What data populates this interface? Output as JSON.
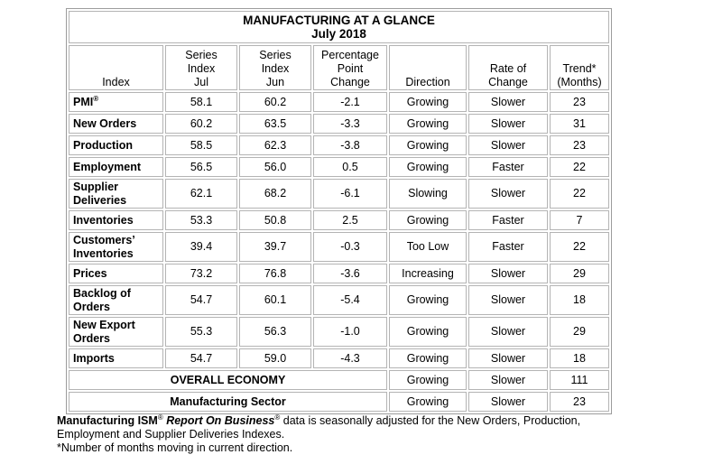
{
  "title": {
    "line1": "MANUFACTURING AT A GLANCE",
    "line2": "July 2018"
  },
  "headers": [
    [
      "Index"
    ],
    [
      "Series",
      "Index",
      "Jul"
    ],
    [
      "Series",
      "Index",
      "Jun"
    ],
    [
      "Percentage",
      "Point",
      "Change"
    ],
    [
      "Direction"
    ],
    [
      "Rate of",
      "Change"
    ],
    [
      "Trend*",
      "(Months)"
    ]
  ],
  "rows": [
    {
      "name": [
        "PMI"
      ],
      "sup": "®",
      "jul": "58.1",
      "jun": "60.2",
      "change": "-2.1",
      "direction": "Growing",
      "rate": "Slower",
      "trend": "23"
    },
    {
      "name": [
        "New Orders"
      ],
      "sup": "",
      "jul": "60.2",
      "jun": "63.5",
      "change": "-3.3",
      "direction": "Growing",
      "rate": "Slower",
      "trend": "31"
    },
    {
      "name": [
        "Production"
      ],
      "sup": "",
      "jul": "58.5",
      "jun": "62.3",
      "change": "-3.8",
      "direction": "Growing",
      "rate": "Slower",
      "trend": "23"
    },
    {
      "name": [
        "Employment"
      ],
      "sup": "",
      "jul": "56.5",
      "jun": "56.0",
      "change": "0.5",
      "direction": "Growing",
      "rate": "Faster",
      "trend": "22"
    },
    {
      "name": [
        "Supplier",
        "Deliveries"
      ],
      "sup": "",
      "jul": "62.1",
      "jun": "68.2",
      "change": "-6.1",
      "direction": "Slowing",
      "rate": "Slower",
      "trend": "22"
    },
    {
      "name": [
        "Inventories"
      ],
      "sup": "",
      "jul": "53.3",
      "jun": "50.8",
      "change": "2.5",
      "direction": "Growing",
      "rate": "Faster",
      "trend": "7"
    },
    {
      "name": [
        "Customers’",
        "Inventories"
      ],
      "sup": "",
      "jul": "39.4",
      "jun": "39.7",
      "change": "-0.3",
      "direction": "Too Low",
      "rate": "Faster",
      "trend": "22"
    },
    {
      "name": [
        "Prices"
      ],
      "sup": "",
      "jul": "73.2",
      "jun": "76.8",
      "change": "-3.6",
      "direction": "Increasing",
      "rate": "Slower",
      "trend": "29"
    },
    {
      "name": [
        "Backlog of",
        "Orders"
      ],
      "sup": "",
      "jul": "54.7",
      "jun": "60.1",
      "change": "-5.4",
      "direction": "Growing",
      "rate": "Slower",
      "trend": "18"
    },
    {
      "name": [
        "New Export",
        "Orders"
      ],
      "sup": "",
      "jul": "55.3",
      "jun": "56.3",
      "change": "-1.0",
      "direction": "Growing",
      "rate": "Slower",
      "trend": "29"
    },
    {
      "name": [
        "Imports"
      ],
      "sup": "",
      "jul": "54.7",
      "jun": "59.0",
      "change": "-4.3",
      "direction": "Growing",
      "rate": "Slower",
      "trend": "18"
    }
  ],
  "summary_rows": [
    {
      "label": "OVERALL ECONOMY",
      "direction": "Growing",
      "rate": "Slower",
      "trend": "111"
    },
    {
      "label": "Manufacturing Sector",
      "direction": "Growing",
      "rate": "Slower",
      "trend": "23"
    }
  ],
  "notes": {
    "ism": "Manufacturing ISM",
    "reg1": "®",
    "rob": "Report On Business",
    "reg2": "®",
    "line1_rest": " data is seasonally adjusted for the New Orders, Production,",
    "line2": "Employment and Supplier Deliveries Indexes.",
    "line3": "*Number of months moving in current direction."
  }
}
